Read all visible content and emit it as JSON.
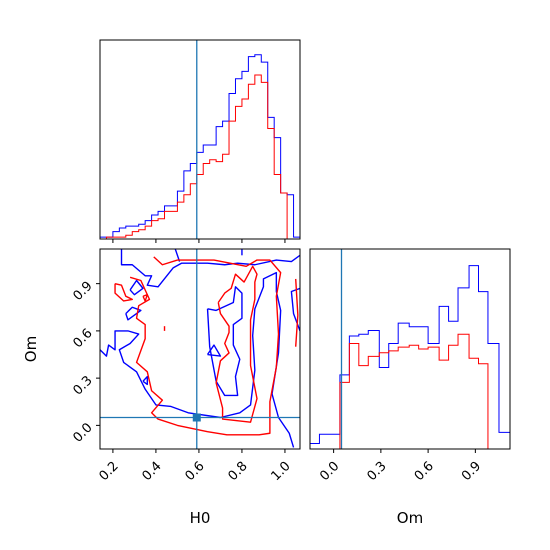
{
  "chart_data": {
    "type": "corner",
    "parameters": [
      "H0",
      "Om"
    ],
    "truths": {
      "H0": 0.59,
      "Om": 0.05
    },
    "colors": {
      "blue": "#0000ff",
      "red": "#ff0000",
      "truth": "#1f77b4"
    },
    "panels": [
      {
        "id": "hist_H0",
        "type": "histogram",
        "xlim": [
          0.14,
          1.07
        ],
        "ylim": [
          0,
          1.08
        ],
        "ticks_hidden": true,
        "bins": [
          0.14,
          0.17,
          0.2,
          0.23,
          0.26,
          0.29,
          0.32,
          0.35,
          0.38,
          0.41,
          0.44,
          0.47,
          0.5,
          0.53,
          0.56,
          0.59,
          0.62,
          0.65,
          0.68,
          0.71,
          0.74,
          0.77,
          0.8,
          0.83,
          0.86,
          0.89,
          0.92,
          0.95,
          0.98,
          1.01,
          1.04,
          1.07
        ],
        "series": [
          {
            "color": "blue",
            "values": [
              0.01,
              0.01,
              0.04,
              0.06,
              0.07,
              0.07,
              0.08,
              0.1,
              0.13,
              0.15,
              0.18,
              0.18,
              0.26,
              0.37,
              0.41,
              0.47,
              0.51,
              0.51,
              0.61,
              0.64,
              0.79,
              0.87,
              0.91,
              0.99,
              1.0,
              0.96,
              0.66,
              0.55,
              0.25,
              0.24,
              0.01
            ]
          },
          {
            "color": "red",
            "values": [
              0.0,
              0.01,
              0.01,
              0.01,
              0.02,
              0.04,
              0.05,
              0.07,
              0.1,
              0.11,
              0.15,
              0.15,
              0.2,
              0.24,
              0.3,
              0.35,
              0.41,
              0.43,
              0.42,
              0.46,
              0.64,
              0.72,
              0.76,
              0.84,
              0.89,
              0.85,
              0.6,
              0.35,
              0.25,
              0.0,
              0.0
            ]
          }
        ]
      },
      {
        "id": "contour_H0_Om",
        "type": "contour",
        "xlabel": "H0",
        "ylabel": "Om",
        "xlim": [
          0.14,
          1.07
        ],
        "ylim": [
          -0.15,
          1.12
        ],
        "xticks": [
          0.2,
          0.4,
          0.6,
          0.8,
          1.0
        ],
        "xtick_labels": [
          "0.2",
          "0.4",
          "0.6",
          "0.8",
          "1.0"
        ],
        "yticks": [
          0.0,
          0.3,
          0.6,
          0.9
        ],
        "ytick_labels": [
          "0.0",
          "0.3",
          "0.6",
          "0.9"
        ],
        "series": [
          {
            "color": "blue",
            "paths": [
              [
                [
                  0.24,
                  1.12
                ],
                [
                  0.24,
                  1.02
                ],
                [
                  0.29,
                  1.02
                ],
                [
                  0.35,
                  0.95
                ],
                [
                  0.38,
                  0.95
                ],
                [
                  0.36,
                  0.89
                ],
                [
                  0.41,
                  0.88
                ],
                [
                  0.48,
                  1.0
                ],
                [
                  0.52,
                  1.03
                ],
                [
                  0.64,
                  1.03
                ],
                [
                  0.72,
                  1.02
                ],
                [
                  0.78,
                  1.03
                ],
                [
                  0.86,
                  1.02
                ],
                [
                  0.96,
                  1.05
                ],
                [
                  1.03,
                  1.04
                ],
                [
                  1.07,
                  1.08
                ]
              ],
              [
                [
                  0.49,
                  1.12
                ],
                [
                  0.51,
                  1.04
                ]
              ],
              [
                [
                  0.8,
                  1.12
                ],
                [
                  0.8,
                  1.08
                ]
              ],
              [
                [
                  0.28,
                  0.86
                ],
                [
                  0.31,
                  0.92
                ],
                [
                  0.34,
                  0.87
                ],
                [
                  0.3,
                  0.83
                ],
                [
                  0.28,
                  0.86
                ]
              ],
              [
                [
                  0.14,
                  0.48
                ],
                [
                  0.17,
                  0.44
                ],
                [
                  0.18,
                  0.51
                ],
                [
                  0.21,
                  0.48
                ],
                [
                  0.21,
                  0.6
                ],
                [
                  0.27,
                  0.6
                ],
                [
                  0.32,
                  0.58
                ],
                [
                  0.28,
                  0.52
                ],
                [
                  0.23,
                  0.48
                ],
                [
                  0.25,
                  0.4
                ],
                [
                  0.31,
                  0.34
                ],
                [
                  0.35,
                  0.23
                ],
                [
                  0.4,
                  0.13
                ],
                [
                  0.47,
                  0.12
                ],
                [
                  0.55,
                  0.08
                ],
                [
                  0.7,
                  0.05
                ],
                [
                  0.79,
                  0.08
                ],
                [
                  0.84,
                  0.13
                ],
                [
                  0.86,
                  0.35
                ],
                [
                  0.85,
                  0.57
                ],
                [
                  0.86,
                  0.74
                ],
                [
                  0.9,
                  0.88
                ],
                [
                  0.9,
                  0.93
                ],
                [
                  0.96,
                  0.97
                ],
                [
                  0.96,
                  0.85
                ],
                [
                  0.98,
                  0.73
                ],
                [
                  0.97,
                  0.46
                ],
                [
                  0.94,
                  0.2
                ],
                [
                  0.97,
                  0.05
                ],
                [
                  1.02,
                  -0.05
                ],
                [
                  1.04,
                  -0.14
                ]
              ],
              [
                [
                  0.26,
                  0.71
                ],
                [
                  0.29,
                  0.75
                ],
                [
                  0.33,
                  0.73
                ],
                [
                  0.27,
                  0.67
                ],
                [
                  0.26,
                  0.71
                ]
              ],
              [
                [
                  0.34,
                  0.28
                ],
                [
                  0.36,
                  0.31
                ],
                [
                  0.36,
                  0.26
                ],
                [
                  0.34,
                  0.28
                ]
              ],
              [
                [
                  0.64,
                  0.45
                ],
                [
                  0.67,
                  0.51
                ],
                [
                  0.7,
                  0.44
                ],
                [
                  0.64,
                  0.45
                ]
              ],
              [
                [
                  0.64,
                  0.74
                ],
                [
                  0.68,
                  0.73
                ],
                [
                  0.76,
                  0.78
                ],
                [
                  0.77,
                  0.88
                ],
                [
                  0.8,
                  0.84
                ],
                [
                  0.8,
                  0.68
                ],
                [
                  0.76,
                  0.64
                ],
                [
                  0.76,
                  0.51
                ],
                [
                  0.79,
                  0.42
                ],
                [
                  0.77,
                  0.31
                ],
                [
                  0.78,
                  0.19
                ],
                [
                  0.72,
                  0.19
                ],
                [
                  0.68,
                  0.28
                ],
                [
                  0.65,
                  0.5
                ],
                [
                  0.64,
                  0.74
                ]
              ],
              [
                [
                  1.07,
                  0.6
                ],
                [
                  1.04,
                  0.71
                ],
                [
                  1.03,
                  0.85
                ],
                [
                  1.07,
                  0.87
                ]
              ]
            ]
          },
          {
            "color": "red",
            "paths": [
              [
                [
                  0.21,
                  0.9
                ],
                [
                  0.24,
                  0.89
                ],
                [
                  0.26,
                  0.82
                ],
                [
                  0.29,
                  0.8
                ],
                [
                  0.25,
                  0.79
                ],
                [
                  0.21,
                  0.84
                ],
                [
                  0.21,
                  0.9
                ]
              ],
              [
                [
                  0.34,
                  0.82
                ],
                [
                  0.36,
                  0.83
                ],
                [
                  0.35,
                  0.79
                ],
                [
                  0.34,
                  0.82
                ]
              ],
              [
                [
                  0.28,
                  0.94
                ],
                [
                  0.33,
                  0.92
                ],
                [
                  0.37,
                  0.8
                ],
                [
                  0.32,
                  0.76
                ],
                [
                  0.31,
                  0.68
                ],
                [
                  0.35,
                  0.64
                ],
                [
                  0.35,
                  0.55
                ],
                [
                  0.31,
                  0.4
                ],
                [
                  0.36,
                  0.34
                ],
                [
                  0.38,
                  0.22
                ],
                [
                  0.43,
                  0.16
                ],
                [
                  0.38,
                  0.08
                ],
                [
                  0.41,
                  0.04
                ],
                [
                  0.5,
                  0.0
                ],
                [
                  0.64,
                  -0.04
                ],
                [
                  0.73,
                  -0.06
                ],
                [
                  0.88,
                  -0.06
                ],
                [
                  0.93,
                  -0.05
                ],
                [
                  0.93,
                  0.15
                ],
                [
                  0.96,
                  0.37
                ],
                [
                  0.97,
                  0.58
                ],
                [
                  0.96,
                  0.82
                ],
                [
                  0.98,
                  0.97
                ],
                [
                  0.93,
                  1.05
                ],
                [
                  0.87,
                  1.05
                ],
                [
                  0.82,
                  1.01
                ],
                [
                  0.67,
                  1.05
                ],
                [
                  0.5,
                  1.05
                ],
                [
                  0.43,
                  1.02
                ],
                [
                  0.39,
                  1.07
                ]
              ],
              [
                [
                  0.44,
                  0.6
                ],
                [
                  0.44,
                  0.63
                ]
              ],
              [
                [
                  0.69,
                  0.78
                ],
                [
                  0.7,
                  0.71
                ],
                [
                  0.74,
                  0.63
                ],
                [
                  0.74,
                  0.59
                ],
                [
                  0.72,
                  0.52
                ],
                [
                  0.74,
                  0.46
                ],
                [
                  0.7,
                  0.41
                ],
                [
                  0.68,
                  0.27
                ],
                [
                  0.71,
                  0.11
                ],
                [
                  0.71,
                  0.04
                ],
                [
                  0.84,
                  0.02
                ],
                [
                  0.87,
                  0.17
                ],
                [
                  0.84,
                  0.38
                ],
                [
                  0.84,
                  0.67
                ],
                [
                  0.86,
                  0.8
                ],
                [
                  0.86,
                  0.91
                ],
                [
                  0.87,
                  0.96
                ],
                [
                  0.85,
                  1.01
                ],
                [
                  0.81,
                  0.91
                ],
                [
                  0.77,
                  0.96
                ],
                [
                  0.75,
                  0.87
                ],
                [
                  0.72,
                  0.84
                ],
                [
                  0.69,
                  0.78
                ]
              ],
              [
                [
                  1.05,
                  0.93
                ],
                [
                  1.06,
                  0.7
                ],
                [
                  1.05,
                  0.5
                ]
              ]
            ]
          }
        ]
      },
      {
        "id": "hist_Om",
        "type": "histogram",
        "xlabel": "Om",
        "xlim": [
          -0.15,
          1.12
        ],
        "ylim": [
          0,
          1.08
        ],
        "xticks": [
          0.0,
          0.3,
          0.6,
          0.9
        ],
        "xtick_labels": [
          "0.0",
          "0.3",
          "0.6",
          "0.9"
        ],
        "bins": [
          -0.15,
          -0.09,
          -0.03,
          0.04,
          0.1,
          0.16,
          0.22,
          0.29,
          0.35,
          0.41,
          0.48,
          0.54,
          0.6,
          0.67,
          0.73,
          0.79,
          0.86,
          0.92,
          0.98,
          1.05,
          1.12
        ],
        "series": [
          {
            "color": "blue",
            "values": [
              0.03,
              0.08,
              0.08,
              0.4,
              0.61,
              0.62,
              0.64,
              0.44,
              0.57,
              0.68,
              0.66,
              0.66,
              0.57,
              0.77,
              0.69,
              0.87,
              0.99,
              0.85,
              0.57,
              0.09
            ]
          },
          {
            "color": "red",
            "values": [
              0.0,
              0.0,
              0.0,
              0.36,
              0.57,
              0.45,
              0.5,
              0.52,
              0.53,
              0.55,
              0.56,
              0.54,
              0.55,
              0.48,
              0.56,
              0.62,
              0.49,
              0.46,
              0.0,
              0.0
            ]
          }
        ]
      }
    ]
  }
}
